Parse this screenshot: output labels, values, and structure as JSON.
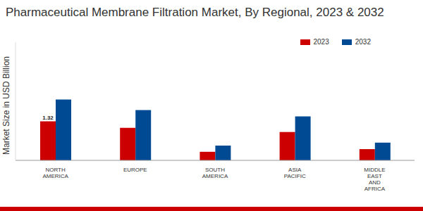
{
  "chart_data": {
    "type": "bar",
    "title": "Pharmaceutical Membrane Filtration Market, By Regional, 2023 & 2032",
    "y_label": "Market Size in USD Billion",
    "categories": [
      "NORTH AMERICA",
      "EUROPE",
      "SOUTH AMERICA",
      "ASIA PACIFIC",
      "MIDDLE EAST AND AFRICA"
    ],
    "series": [
      {
        "name": "2023",
        "color": "#cc0000",
        "values": [
          1.32,
          1.1,
          0.29,
          0.96,
          0.38
        ],
        "value_labels": [
          "1.32",
          null,
          null,
          null,
          null
        ]
      },
      {
        "name": "2032",
        "color": "#004a94",
        "values": [
          2.06,
          1.7,
          0.5,
          1.49,
          0.6
        ]
      }
    ],
    "ylim": [
      0,
      4
    ],
    "tick_labels": "x",
    "grid": false,
    "legend": "top-right",
    "data_labels": true
  }
}
